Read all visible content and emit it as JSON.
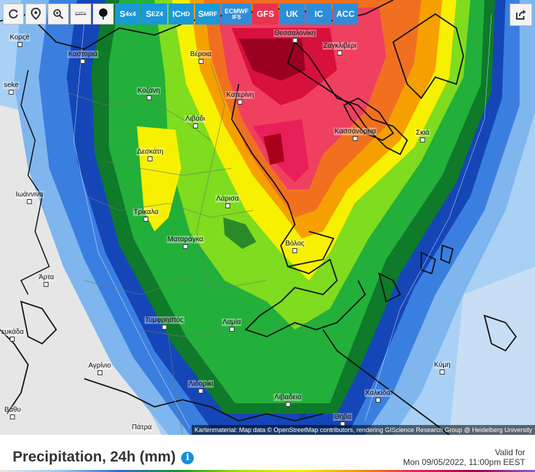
{
  "toolbar": {
    "buttons": [
      {
        "name": "refresh",
        "icon": "refresh-icon"
      },
      {
        "name": "location",
        "icon": "location-pin-icon"
      },
      {
        "name": "zoom",
        "icon": "zoom-in-icon"
      },
      {
        "name": "city",
        "label": "CITY"
      },
      {
        "name": "dot",
        "icon": "point-marker-icon"
      }
    ],
    "models": [
      {
        "main": "S",
        "sub": "4x4",
        "color": "#1a98d8"
      },
      {
        "main": "S",
        "sub": "EZ4",
        "color": "#1a98d8"
      },
      {
        "main": "IC",
        "sub": "HD",
        "color": "#1a98d8"
      },
      {
        "main": "S",
        "sub": "MRF",
        "color": "#1a98d8"
      },
      {
        "main": "ECMWF",
        "sub": "IFS",
        "color": "#2f8dd8"
      },
      {
        "main": "GFS",
        "sub": "",
        "color": "#e8344e"
      },
      {
        "main": "UK",
        "sub": "",
        "color": "#2f8dd8"
      },
      {
        "main": "IC",
        "sub": "",
        "color": "#2f8dd8"
      },
      {
        "main": "ACC",
        "sub": "",
        "color": "#2f8dd8"
      }
    ]
  },
  "share": {
    "icon": "share-icon"
  },
  "cities": [
    {
      "name": "Κορςë"
    },
    {
      "name": "Καστοριά"
    },
    {
      "name": "Βέροια"
    },
    {
      "name": "Θεσσαλονίκη"
    },
    {
      "name": "Ζαγκλιβέρι"
    },
    {
      "name": "seke"
    },
    {
      "name": "Κοζάνη"
    },
    {
      "name": "Κατερίνη"
    },
    {
      "name": "Λιβάδι"
    },
    {
      "name": "Κασσάνδρεια"
    },
    {
      "name": "Σκιά"
    },
    {
      "name": "Δεσκάτη"
    },
    {
      "name": "Ιωάννινα"
    },
    {
      "name": "Λάρισα"
    },
    {
      "name": "Τρίκαλα"
    },
    {
      "name": "Ματαράγκα"
    },
    {
      "name": "Βόλος"
    },
    {
      "name": "Άρτα"
    },
    {
      "name": "ευκάδα"
    },
    {
      "name": "Τυμφρηστός"
    },
    {
      "name": "Λαμία"
    },
    {
      "name": "Αγρίνιο"
    },
    {
      "name": "Κύμη"
    },
    {
      "name": "Λιδορίκι"
    },
    {
      "name": "Χαλκίδα"
    },
    {
      "name": "Λιβαδειά"
    },
    {
      "name": "Βάθυ"
    },
    {
      "name": "Θήβα"
    },
    {
      "name": "Πάτρα"
    }
  ],
  "contour_label": "10",
  "attribution": "Kartenmaterial: Map data © OpenStreetMap contributors, rendering GIScience Research Group @ Heidelberg University",
  "footer": {
    "title": "Precipitation, 24h (mm)",
    "info_icon": "i",
    "valid_label": "Valid for",
    "valid_time": "Mon 09/05/2022, 11:00pm EEST"
  },
  "colors": {
    "dry": "#e6e6e6",
    "light_blue": "#a9d0f5",
    "blue": "#3a7fe0",
    "dark_blue": "#1546b8",
    "dark_green": "#0e7a2a",
    "green": "#22b03a",
    "light_green": "#7fdc1e",
    "yellow": "#f7f000",
    "orange": "#f5a000",
    "dark_orange": "#f07020",
    "pink": "#f04060",
    "red": "#d8103c",
    "dark_red": "#9a0020"
  }
}
